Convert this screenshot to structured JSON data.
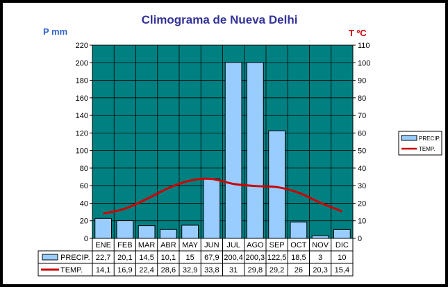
{
  "chart_data": {
    "type": "bar",
    "title": "Climograma de Nueva Delhi",
    "ylabel_left": "P mm",
    "ylabel_right": "T ºC",
    "categories": [
      "ENE",
      "FEB",
      "MAR",
      "ABR",
      "MAY",
      "JUN",
      "JUL",
      "AGO",
      "SEP",
      "OCT",
      "NOV",
      "DIC"
    ],
    "ylim_left": [
      0,
      220
    ],
    "ylim_right": [
      0,
      110
    ],
    "yticks_left": [
      0,
      20,
      40,
      60,
      80,
      100,
      120,
      140,
      160,
      180,
      200,
      220
    ],
    "yticks_right": [
      0,
      10,
      20,
      30,
      40,
      50,
      60,
      70,
      80,
      90,
      100,
      110
    ],
    "grid": true,
    "legend_position": "right",
    "series": [
      {
        "name": "PRECIP.",
        "type": "bar",
        "axis": "left",
        "color": "#99CCFF",
        "values": [
          22.7,
          20.1,
          14.5,
          10.1,
          15,
          67.9,
          200.4,
          200.3,
          122.5,
          18.5,
          3,
          10
        ],
        "labels": [
          "22,7",
          "20,1",
          "14,5",
          "10,1",
          "15",
          "67,9",
          "200,4",
          "200,3",
          "122,5",
          "18,5",
          "3",
          "10"
        ]
      },
      {
        "name": "TEMP.",
        "type": "line",
        "axis": "right",
        "color": "#CC0000",
        "values": [
          14.1,
          16.9,
          22.4,
          28.6,
          32.9,
          33.8,
          31,
          29.8,
          29.2,
          26,
          20.3,
          15.4
        ],
        "labels": [
          "14,1",
          "16,9",
          "22,4",
          "28,6",
          "32,9",
          "33,8",
          "31",
          "29,8",
          "29,2",
          "26",
          "20,3",
          "15,4"
        ]
      }
    ],
    "plot_background": "#008080"
  }
}
